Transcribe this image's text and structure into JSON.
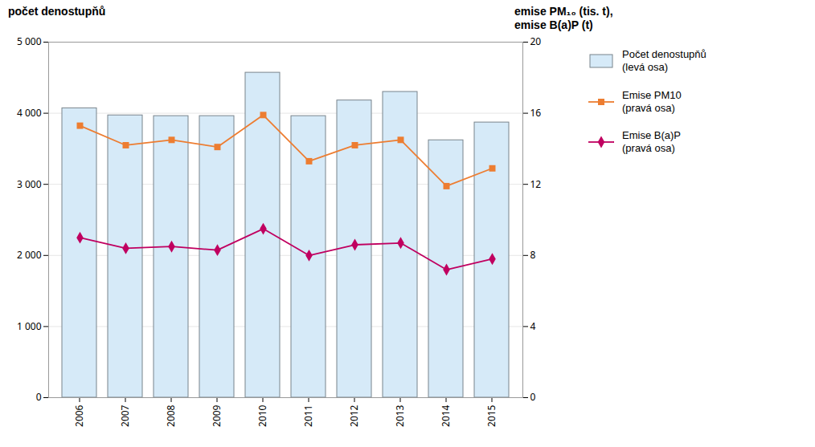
{
  "chart_data": {
    "type": "bar_line",
    "ylabel": "počet denostupňů",
    "y2label": "emise PM₁₀ (tis. t),\nemise B(a)P (t)",
    "categories": [
      "2006",
      "2007",
      "2008",
      "2009",
      "2010",
      "2011",
      "2012",
      "2013",
      "2014",
      "2015"
    ],
    "series": [
      {
        "name": "Počet denostupňů\n(levá osa)",
        "type": "bar",
        "color": "#d6eaf8",
        "values": [
          4070,
          3970,
          3960,
          3960,
          4570,
          3960,
          4180,
          4300,
          3620,
          3870
        ]
      },
      {
        "name": "Emise PM10\n(pravá osa)",
        "type": "line",
        "axis": "y2",
        "color": "#ed7d31",
        "marker": "square",
        "values": [
          15.3,
          14.2,
          14.5,
          14.1,
          15.9,
          13.3,
          14.2,
          14.5,
          11.9,
          12.9
        ]
      },
      {
        "name": "Emise B(a)P\n(pravá osa)",
        "type": "line",
        "axis": "y2",
        "color": "#c00060",
        "marker": "diamond",
        "values": [
          9.0,
          8.4,
          8.5,
          8.3,
          9.5,
          8.0,
          8.6,
          8.7,
          7.2,
          7.8
        ]
      }
    ],
    "ylim": [
      0,
      5000
    ],
    "yticks": [
      0,
      {
        "value": 1000,
        "label": "1 000"
      },
      {
        "value": 2000,
        "label": "2 000"
      },
      {
        "value": 3000,
        "label": "3 000"
      },
      {
        "value": 4000,
        "label": "4 000"
      },
      {
        "value": 5000,
        "label": "5 000"
      }
    ],
    "y2lim": [
      0,
      20
    ],
    "y2ticks": [
      0,
      4,
      8,
      12,
      16,
      20
    ],
    "grid": true,
    "legend": "right"
  }
}
